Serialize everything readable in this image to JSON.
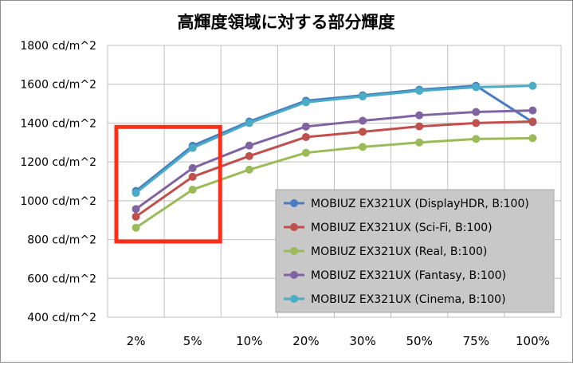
{
  "chart_data": {
    "type": "line",
    "title": "高輝度領域に対する部分輝度",
    "xlabel": "",
    "ylabel": "",
    "categories": [
      "2%",
      "5%",
      "10%",
      "20%",
      "30%",
      "50%",
      "75%",
      "100%"
    ],
    "ylim": [
      400,
      1800
    ],
    "y_tick_values": [
      400,
      600,
      800,
      1000,
      1200,
      1400,
      1600,
      1800
    ],
    "y_tick_labels": [
      "400 cd/m^2",
      "600 cd/m^2",
      "800 cd/m^2",
      "1000 cd/m^2",
      "1200 cd/m^2",
      "1400 cd/m^2",
      "1600 cd/m^2",
      "1800 cd/m^2"
    ],
    "grid": true,
    "legend_position": "bottom-right",
    "series": [
      {
        "name": "MOBIUZ EX321UX (DisplayHDR, B:100)",
        "color": "#4a7cc2",
        "values": [
          1050,
          1283,
          1408,
          1515,
          1543,
          1572,
          1592,
          1405
        ]
      },
      {
        "name": "MOBIUZ EX321UX (Sci-Fi, B:100)",
        "color": "#c0504d",
        "values": [
          918,
          1123,
          1230,
          1328,
          1355,
          1383,
          1400,
          1408
        ]
      },
      {
        "name": "MOBIUZ EX321UX (Real, B:100)",
        "color": "#9bbb59",
        "values": [
          861,
          1057,
          1160,
          1247,
          1277,
          1300,
          1318,
          1322
        ]
      },
      {
        "name": "MOBIUZ EX321UX (Fantasy, B:100)",
        "color": "#8064a2",
        "values": [
          957,
          1168,
          1284,
          1382,
          1412,
          1440,
          1457,
          1465
        ]
      },
      {
        "name": "MOBIUZ EX321UX (Cinema, B:100)",
        "color": "#4bacc6",
        "values": [
          1040,
          1272,
          1400,
          1507,
          1537,
          1566,
          1585,
          1592
        ]
      }
    ],
    "highlight": {
      "color": "#ff2d1a",
      "from_category": "2%",
      "to_category": "5%",
      "y_range": [
        790,
        1380
      ]
    }
  }
}
